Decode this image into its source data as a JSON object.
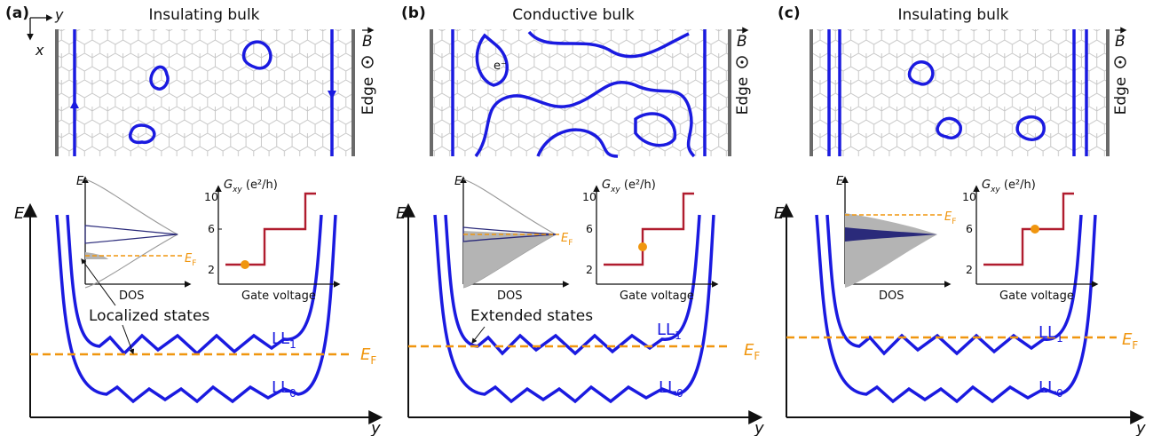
{
  "panels": [
    {
      "label": "(a)",
      "title": "Insulating bulk",
      "bulk": "insulating",
      "ef_level": 0.42,
      "gate_dot_value": 2,
      "ef_on_dos": 0.28,
      "annotation": "Localized states"
    },
    {
      "label": "(b)",
      "title": "Conductive bulk",
      "bulk": "conductive",
      "ef_level": 0.52,
      "gate_dot_value": 4,
      "ef_on_dos": 0.55,
      "annotation": "Extended states",
      "electron_label": "e⁻"
    },
    {
      "label": "(c)",
      "title": "Insulating bulk",
      "bulk": "insulating",
      "ef_level": 0.63,
      "gate_dot_value": 6,
      "ef_on_dos": 0.82,
      "annotation": ""
    }
  ],
  "labels": {
    "axis_x_top": "x",
    "axis_y_top": "y",
    "b_field": "B",
    "edge": "Edge",
    "energy_axis": "E",
    "position_axis": "y",
    "ll0_base": "LL",
    "ll0_sub": "0",
    "ll1_base": "LL",
    "ll1_sub": "1",
    "fermi_base": "E",
    "fermi_sub": "F",
    "dos_label": "DOS",
    "dos_e_axis": "E",
    "gxy_label_base": "G",
    "gxy_label_sub": "xy",
    "gxy_units": "(e²/h)",
    "gate_label": "Gate voltage",
    "gxy_ticks": [
      "2",
      "6",
      "10"
    ]
  },
  "colors": {
    "edge_blue": "#1a1ae0",
    "fermi_orange": "#f0960f",
    "staircase_red": "#b01c2e",
    "honeycomb": "#c8c8c8",
    "dos_fill": "#b4b4b4",
    "dos_dark": "#2a2a7a"
  }
}
